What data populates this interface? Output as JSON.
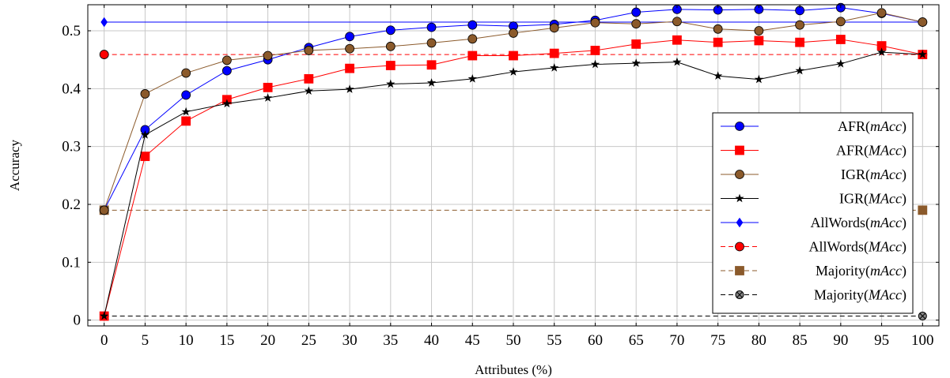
{
  "chart_data": {
    "type": "line",
    "title": "",
    "xlabel": "Attributes (%)",
    "ylabel": "Accuracy",
    "x": [
      0,
      5,
      10,
      15,
      20,
      25,
      30,
      35,
      40,
      45,
      50,
      55,
      60,
      65,
      70,
      75,
      80,
      85,
      90,
      95,
      100
    ],
    "xlim": [
      -2,
      102
    ],
    "ylim": [
      -0.01,
      0.545
    ],
    "x_ticks": [
      "0",
      "5",
      "10",
      "15",
      "20",
      "25",
      "30",
      "35",
      "40",
      "45",
      "50",
      "55",
      "60",
      "65",
      "70",
      "75",
      "80",
      "85",
      "90",
      "95",
      "100"
    ],
    "y_ticks": [
      "0",
      "0.1",
      "0.2",
      "0.3",
      "0.4",
      "0.5"
    ],
    "y_tick_values": [
      0,
      0.1,
      0.2,
      0.3,
      0.4,
      0.5
    ],
    "grid": true,
    "legend_position": "right",
    "series": [
      {
        "name": "AFR",
        "name_suffix": "mAcc",
        "color": "#0000ff",
        "marker": "circle",
        "dash": "solid",
        "values": [
          0.19,
          0.329,
          0.389,
          0.431,
          0.45,
          0.471,
          0.49,
          0.501,
          0.506,
          0.51,
          0.508,
          0.511,
          0.518,
          0.532,
          0.537,
          0.536,
          0.537,
          0.535,
          0.54,
          0.53,
          0.515
        ]
      },
      {
        "name": "AFR",
        "name_suffix": "MAcc",
        "color": "#ff0000",
        "marker": "square",
        "dash": "solid",
        "values": [
          0.007,
          0.283,
          0.344,
          0.381,
          0.402,
          0.417,
          0.435,
          0.44,
          0.441,
          0.457,
          0.457,
          0.461,
          0.466,
          0.477,
          0.484,
          0.48,
          0.483,
          0.48,
          0.485,
          0.474,
          0.459
        ]
      },
      {
        "name": "IGR",
        "name_suffix": "mAcc",
        "color": "#8b5a2b",
        "marker": "circle",
        "dash": "solid",
        "values": [
          0.19,
          0.391,
          0.427,
          0.449,
          0.457,
          0.466,
          0.469,
          0.473,
          0.479,
          0.486,
          0.496,
          0.505,
          0.514,
          0.512,
          0.516,
          0.503,
          0.5,
          0.51,
          0.516,
          0.531,
          0.515
        ]
      },
      {
        "name": "IGR",
        "name_suffix": "MAcc",
        "color": "#000000",
        "marker": "star",
        "dash": "solid",
        "values": [
          0.007,
          0.32,
          0.36,
          0.374,
          0.384,
          0.396,
          0.399,
          0.408,
          0.41,
          0.417,
          0.429,
          0.436,
          0.442,
          0.444,
          0.446,
          0.422,
          0.416,
          0.431,
          0.443,
          0.463,
          0.459
        ]
      },
      {
        "name": "AllWords",
        "name_suffix": "mAcc",
        "color": "#0000ff",
        "marker": "diamond",
        "dash": "solid",
        "values": [
          0.515,
          0.515,
          0.515,
          0.515,
          0.515,
          0.515,
          0.515,
          0.515,
          0.515,
          0.515,
          0.515,
          0.515,
          0.515,
          0.515,
          0.515,
          0.515,
          0.515,
          0.515,
          0.515,
          0.515,
          0.515
        ],
        "marker_at": [
          0,
          100
        ]
      },
      {
        "name": "AllWords",
        "name_suffix": "MAcc",
        "color": "#ff0000",
        "marker": "circle",
        "dash": "dashed",
        "values": [
          0.459,
          0.459,
          0.459,
          0.459,
          0.459,
          0.459,
          0.459,
          0.459,
          0.459,
          0.459,
          0.459,
          0.459,
          0.459,
          0.459,
          0.459,
          0.459,
          0.459,
          0.459,
          0.459,
          0.459,
          0.459
        ],
        "marker_at": [
          0,
          100
        ]
      },
      {
        "name": "Majority",
        "name_suffix": "mAcc",
        "color": "#8b5a2b",
        "marker": "square",
        "dash": "dashed",
        "values": [
          0.19,
          0.19,
          0.19,
          0.19,
          0.19,
          0.19,
          0.19,
          0.19,
          0.19,
          0.19,
          0.19,
          0.19,
          0.19,
          0.19,
          0.19,
          0.19,
          0.19,
          0.19,
          0.19,
          0.19,
          0.19
        ],
        "marker_at": [
          0,
          100
        ]
      },
      {
        "name": "Majority",
        "name_suffix": "MAcc",
        "color": "#000000",
        "marker": "otimes",
        "dash": "dashed",
        "values": [
          0.007,
          0.007,
          0.007,
          0.007,
          0.007,
          0.007,
          0.007,
          0.007,
          0.007,
          0.007,
          0.007,
          0.007,
          0.007,
          0.007,
          0.007,
          0.007,
          0.007,
          0.007,
          0.007,
          0.007,
          0.007
        ],
        "marker_at": [
          0,
          100
        ]
      }
    ]
  }
}
